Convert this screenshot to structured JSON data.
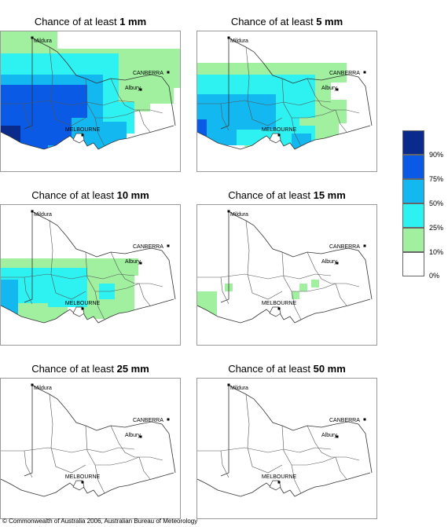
{
  "panels": [
    {
      "prefix": "Chance of at least ",
      "amount": "1 mm"
    },
    {
      "prefix": "Chance of at least ",
      "amount": "5 mm"
    },
    {
      "prefix": "Chance of at least ",
      "amount": "10 mm"
    },
    {
      "prefix": "Chance of at least ",
      "amount": "15 mm"
    },
    {
      "prefix": "Chance of at least ",
      "amount": "25 mm"
    },
    {
      "prefix": "Chance of at least ",
      "amount": "50 mm"
    }
  ],
  "cities": {
    "mildura": "Mildura",
    "canberra": "CANBERRA",
    "albury": "Albury",
    "melbourne": "MELBOURNE"
  },
  "legend": {
    "labels": [
      "90%",
      "75%",
      "50%",
      "25%",
      "10%",
      "0%"
    ],
    "colors": [
      "#0a2a8c",
      "#0a5ae6",
      "#13b8f0",
      "#2ef2f2",
      "#a0f0a0",
      "#ffffff"
    ]
  },
  "copyright": "© Commonwealth of Australia 2006, Australian Bureau of Meteorology"
}
